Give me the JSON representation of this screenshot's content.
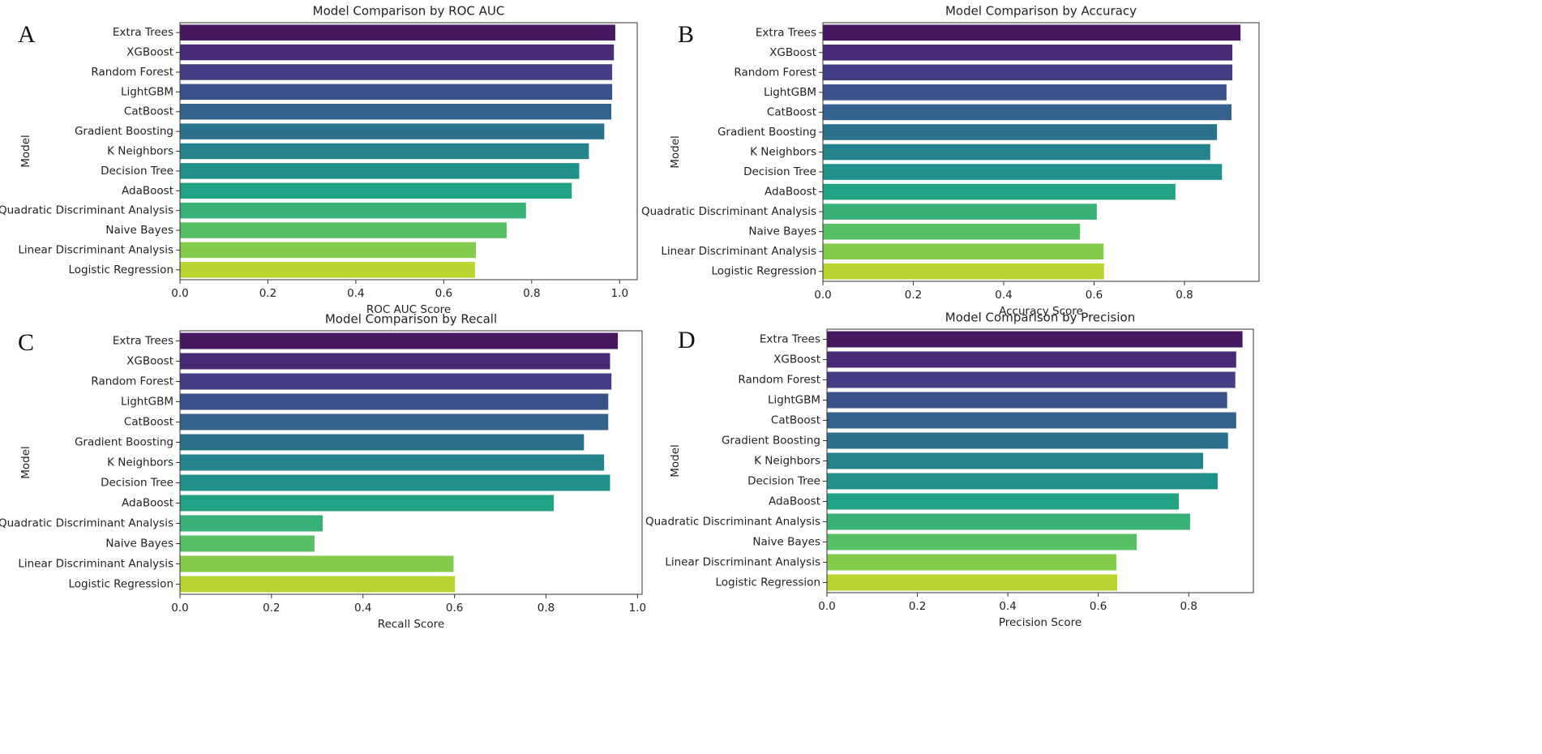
{
  "chart_data": [
    {
      "type": "barh",
      "panel_label": "A",
      "title": "Model Comparison by ROC AUC",
      "xlabel": "ROC AUC Score",
      "ylabel": "Model",
      "categories": [
        "Extra Trees",
        "XGBoost",
        "Random Forest",
        "LightGBM",
        "CatBoost",
        "Gradient Boosting",
        "K Neighbors",
        "Decision Tree",
        "AdaBoost",
        "Quadratic Discriminant Analysis",
        "Naive Bayes",
        "Linear Discriminant Analysis",
        "Logistic Regression"
      ],
      "values": [
        0.99,
        0.987,
        0.983,
        0.983,
        0.981,
        0.965,
        0.93,
        0.908,
        0.891,
        0.787,
        0.743,
        0.673,
        0.671
      ],
      "colors": [
        "#46185f",
        "#482a76",
        "#433e84",
        "#3b518a",
        "#33638c",
        "#2b738d",
        "#25838d",
        "#20928b",
        "#22a284",
        "#38b176",
        "#57bf64",
        "#83cb4b",
        "#b8d530"
      ],
      "xlim": [
        0,
        1.04
      ],
      "xticks": [
        {
          "value": 0,
          "label": "0.0"
        },
        0.2,
        0.4,
        0.6,
        0.8,
        {
          "value": 1,
          "label": "1.0"
        }
      ]
    },
    {
      "type": "barh",
      "panel_label": "B",
      "title": "Model Comparison by Accuracy",
      "xlabel": "Accuracy Score",
      "ylabel": "Model",
      "categories": [
        "Extra Trees",
        "XGBoost",
        "Random Forest",
        "LightGBM",
        "CatBoost",
        "Gradient Boosting",
        "K Neighbors",
        "Decision Tree",
        "AdaBoost",
        "Quadratic Discriminant Analysis",
        "Naive Bayes",
        "Linear Discriminant Analysis",
        "Logistic Regression"
      ],
      "values": [
        0.924,
        0.906,
        0.906,
        0.893,
        0.904,
        0.872,
        0.857,
        0.883,
        0.78,
        0.606,
        0.569,
        0.621,
        0.622
      ],
      "colors": [
        "#46185f",
        "#482a76",
        "#433e84",
        "#3b518a",
        "#33638c",
        "#2b738d",
        "#25838d",
        "#20928b",
        "#22a284",
        "#38b176",
        "#57bf64",
        "#83cb4b",
        "#b8d530"
      ],
      "xlim": [
        0,
        0.965
      ],
      "xticks": [
        {
          "value": 0,
          "label": "0.0"
        },
        0.2,
        0.4,
        0.6,
        0.8
      ]
    },
    {
      "type": "barh",
      "panel_label": "C",
      "title": "Model Comparison by Recall",
      "xlabel": "Recall Score",
      "ylabel": "Model",
      "categories": [
        "Extra Trees",
        "XGBoost",
        "Random Forest",
        "LightGBM",
        "CatBoost",
        "Gradient Boosting",
        "K Neighbors",
        "Decision Tree",
        "AdaBoost",
        "Quadratic Discriminant Analysis",
        "Naive Bayes",
        "Linear Discriminant Analysis",
        "Logistic Regression"
      ],
      "values": [
        0.957,
        0.94,
        0.943,
        0.936,
        0.936,
        0.883,
        0.927,
        0.94,
        0.817,
        0.312,
        0.294,
        0.598,
        0.601
      ],
      "colors": [
        "#46185f",
        "#482a76",
        "#433e84",
        "#3b518a",
        "#33638c",
        "#2b738d",
        "#25838d",
        "#20928b",
        "#22a284",
        "#38b176",
        "#57bf64",
        "#83cb4b",
        "#b8d530"
      ],
      "xlim": [
        0,
        1.01
      ],
      "xticks": [
        {
          "value": 0,
          "label": "0.0"
        },
        0.2,
        0.4,
        0.6,
        0.8,
        {
          "value": 1,
          "label": "1.0"
        }
      ]
    },
    {
      "type": "barh",
      "panel_label": "D",
      "title": "Model Comparison by Precision",
      "xlabel": "Precision Score",
      "ylabel": "Model",
      "categories": [
        "Extra Trees",
        "XGBoost",
        "Random Forest",
        "LightGBM",
        "CatBoost",
        "Gradient Boosting",
        "K Neighbors",
        "Decision Tree",
        "AdaBoost",
        "Quadratic Discriminant Analysis",
        "Naive Bayes",
        "Linear Discriminant Analysis",
        "Logistic Regression"
      ],
      "values": [
        0.919,
        0.905,
        0.903,
        0.885,
        0.905,
        0.887,
        0.832,
        0.864,
        0.778,
        0.803,
        0.685,
        0.64,
        0.642
      ],
      "colors": [
        "#46185f",
        "#482a76",
        "#433e84",
        "#3b518a",
        "#33638c",
        "#2b738d",
        "#25838d",
        "#20928b",
        "#22a284",
        "#38b176",
        "#57bf64",
        "#83cb4b",
        "#b8d530"
      ],
      "xlim": [
        0,
        0.943
      ],
      "xticks": [
        {
          "value": 0,
          "label": "0.0"
        },
        0.2,
        0.4,
        0.6,
        0.8
      ]
    }
  ]
}
